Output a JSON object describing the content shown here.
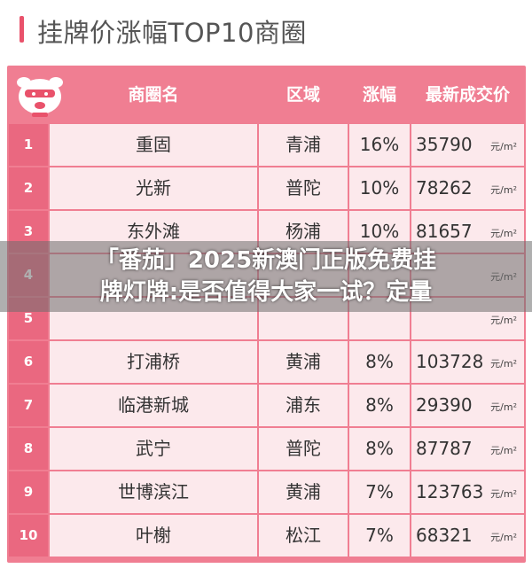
{
  "title": "挂牌价涨幅TOP10商圈",
  "colors": {
    "accent": "#e9526b",
    "header_bg": "#f07e92",
    "row_bg": "#fce9ec",
    "rank_bg": "#ea6880"
  },
  "table": {
    "headers": [
      "商圈名",
      "区域",
      "涨幅",
      "最新成交价"
    ],
    "unit": "元/m²",
    "rows": [
      {
        "rank": "1",
        "name": "重固",
        "region": "青浦",
        "rise": "16%",
        "price": "35790"
      },
      {
        "rank": "2",
        "name": "光新",
        "region": "普陀",
        "rise": "10%",
        "price": "78262"
      },
      {
        "rank": "3",
        "name": "东外滩",
        "region": "杨浦",
        "rise": "10%",
        "price": "81657"
      },
      {
        "rank": "4",
        "name": "",
        "region": "",
        "rise": "",
        "price": ""
      },
      {
        "rank": "5",
        "name": "",
        "region": "",
        "rise": "",
        "price": ""
      },
      {
        "rank": "6",
        "name": "打浦桥",
        "region": "黄浦",
        "rise": "8%",
        "price": "103728"
      },
      {
        "rank": "7",
        "name": "临港新城",
        "region": "浦东",
        "rise": "8%",
        "price": "29390"
      },
      {
        "rank": "8",
        "name": "武宁",
        "region": "普陀",
        "rise": "8%",
        "price": "87787"
      },
      {
        "rank": "9",
        "name": "世博滨江",
        "region": "黄浦",
        "rise": "7%",
        "price": "123763"
      },
      {
        "rank": "10",
        "name": "叶榭",
        "region": "松江",
        "rise": "7%",
        "price": "68321"
      }
    ]
  },
  "overlay": {
    "line1": "「番茄」2025新澳门正版免费挂",
    "line2": "牌灯牌:是否值得大家一试？定量"
  }
}
